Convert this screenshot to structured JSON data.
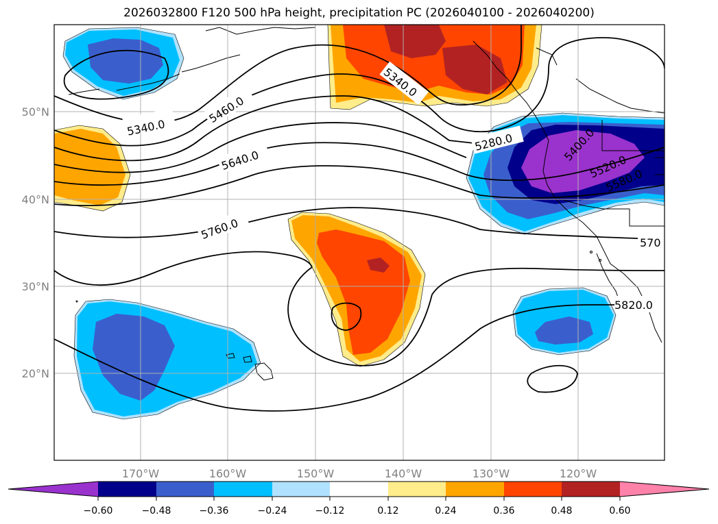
{
  "title": "2026032800 F120 500 hPa height, precipitation PC (2026040100 - 2026040200)",
  "colors": {
    "neg_extend": "#9a32cd",
    "n060": "#00008b",
    "n048": "#3a5fcd",
    "n036": "#00bfff",
    "n024": "#b0e2ff",
    "neutral": "#ffffff",
    "p012": "#ffec8b",
    "p024": "#ffa500",
    "p036": "#ff4500",
    "p048": "#b22222",
    "pos_extend": "#ff82ab"
  },
  "latitudes": [
    "50°N",
    "40°N",
    "30°N",
    "20°N"
  ],
  "longitudes": [
    "170°W",
    "160°W",
    "150°W",
    "140°W",
    "130°W",
    "120°W"
  ],
  "contour_labels": [
    "5340.0",
    "5460.0",
    "5640.0",
    "5760.0",
    "5340.0",
    "5280.0",
    "5400.0",
    "5520.0",
    "5580.0",
    "570",
    "5820.0"
  ],
  "colorbar_ticks": [
    "−0.60",
    "−0.48",
    "−0.36",
    "−0.24",
    "−0.12",
    "0.12",
    "0.24",
    "0.36",
    "0.48",
    "0.60"
  ]
}
